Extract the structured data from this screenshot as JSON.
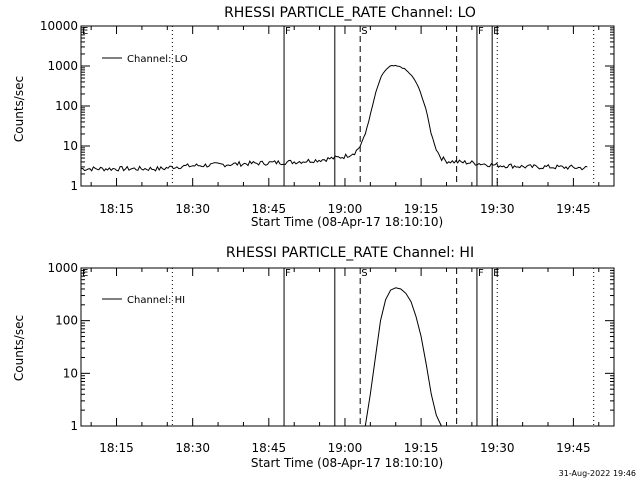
{
  "footer": {
    "date_stamp": "31-Aug-2022 19:46"
  },
  "chart_data": [
    {
      "type": "line",
      "title": "RHESSI PARTICLE_RATE Channel: LO",
      "xlabel": "Start Time (08-Apr-17 18:10:10)",
      "ylabel": "Counts/sec",
      "y_scale": "log",
      "ylim": [
        1,
        10000
      ],
      "ytick_labels": [
        "1",
        "10",
        "100",
        "1000",
        "10000"
      ],
      "ytick_values": [
        1,
        10,
        100,
        1000,
        10000
      ],
      "xlim": [
        "18:08",
        "19:53"
      ],
      "xtick_labels": [
        "18:15",
        "18:30",
        "18:45",
        "19:00",
        "19:15",
        "19:30",
        "19:45"
      ],
      "xtick_values": [
        "18:15",
        "18:30",
        "18:45",
        "19:00",
        "19:15",
        "19:30",
        "19:45"
      ],
      "grid": false,
      "legend": {
        "position": "top-left",
        "entries": [
          "Channel: LO"
        ]
      },
      "series": [
        {
          "name": "Channel: LO",
          "color": "#000000",
          "x": [
            "18:08",
            "18:12",
            "18:15",
            "18:20",
            "18:24",
            "18:26",
            "18:30",
            "18:35",
            "18:40",
            "18:45",
            "18:50",
            "18:55",
            "18:58",
            "19:00",
            "19:02",
            "19:03",
            "19:04",
            "19:05",
            "19:06",
            "19:07",
            "19:08",
            "19:09",
            "19:10",
            "19:11",
            "19:12",
            "19:13",
            "19:14",
            "19:15",
            "19:16",
            "19:17",
            "19:18",
            "19:19",
            "19:20",
            "19:22",
            "19:25",
            "19:28",
            "19:30",
            "19:33",
            "19:36",
            "19:40",
            "19:45",
            "19:48"
          ],
          "y": [
            2.7,
            2.7,
            2.7,
            2.7,
            2.7,
            3.0,
            3.2,
            3.4,
            3.6,
            3.8,
            4.0,
            4.5,
            5.0,
            5.5,
            7,
            10,
            20,
            60,
            200,
            500,
            800,
            1000,
            1000,
            950,
            800,
            600,
            400,
            200,
            80,
            20,
            8,
            5,
            4.2,
            4.0,
            3.8,
            3.5,
            3.3,
            3.2,
            3.0,
            3.0,
            2.9,
            2.8
          ]
        }
      ],
      "annotations": {
        "solid_lines": [
          "18:48",
          "18:58",
          "19:26",
          "19:29"
        ],
        "dashed_lines": [
          "19:03",
          "19:22"
        ],
        "dotted_lines": [
          "18:26",
          "19:30",
          "19:49"
        ],
        "flags": [
          {
            "label": "E",
            "x": "18:08"
          },
          {
            "label": "F",
            "x": "18:48"
          },
          {
            "label": "S",
            "x": "19:03"
          },
          {
            "label": "F",
            "x": "19:26"
          },
          {
            "label": "E",
            "x": "19:29"
          }
        ]
      }
    },
    {
      "type": "line",
      "title": "RHESSI PARTICLE_RATE Channel: HI",
      "xlabel": "Start Time (08-Apr-17 18:10:10)",
      "ylabel": "Counts/sec",
      "y_scale": "log",
      "ylim": [
        1,
        1000
      ],
      "ytick_labels": [
        "1",
        "10",
        "100",
        "1000"
      ],
      "ytick_values": [
        1,
        10,
        100,
        1000
      ],
      "xlim": [
        "18:08",
        "19:53"
      ],
      "xtick_labels": [
        "18:15",
        "18:30",
        "18:45",
        "19:00",
        "19:15",
        "19:30",
        "19:45"
      ],
      "xtick_values": [
        "18:15",
        "18:30",
        "18:45",
        "19:00",
        "19:15",
        "19:30",
        "19:45"
      ],
      "grid": false,
      "legend": {
        "position": "top-left",
        "entries": [
          "Channel: HI"
        ]
      },
      "series": [
        {
          "name": "Channel: HI",
          "color": "#000000",
          "x": [
            "19:04",
            "19:05",
            "19:06",
            "19:07",
            "19:08",
            "19:09",
            "19:10",
            "19:11",
            "19:12",
            "19:13",
            "19:14",
            "19:15",
            "19:16",
            "19:17",
            "19:18",
            "19:19"
          ],
          "y": [
            1,
            4,
            20,
            100,
            250,
            380,
            420,
            400,
            330,
            230,
            120,
            50,
            15,
            4,
            1.6,
            1
          ]
        }
      ],
      "annotations": {
        "solid_lines": [
          "18:48",
          "18:58",
          "19:26",
          "19:29"
        ],
        "dashed_lines": [
          "19:03",
          "19:22"
        ],
        "dotted_lines": [
          "18:26",
          "19:30",
          "19:49"
        ],
        "flags": [
          {
            "label": "E",
            "x": "18:08"
          },
          {
            "label": "F",
            "x": "18:48"
          },
          {
            "label": "S",
            "x": "19:03"
          },
          {
            "label": "F",
            "x": "19:26"
          },
          {
            "label": "E",
            "x": "19:29"
          }
        ]
      }
    }
  ]
}
